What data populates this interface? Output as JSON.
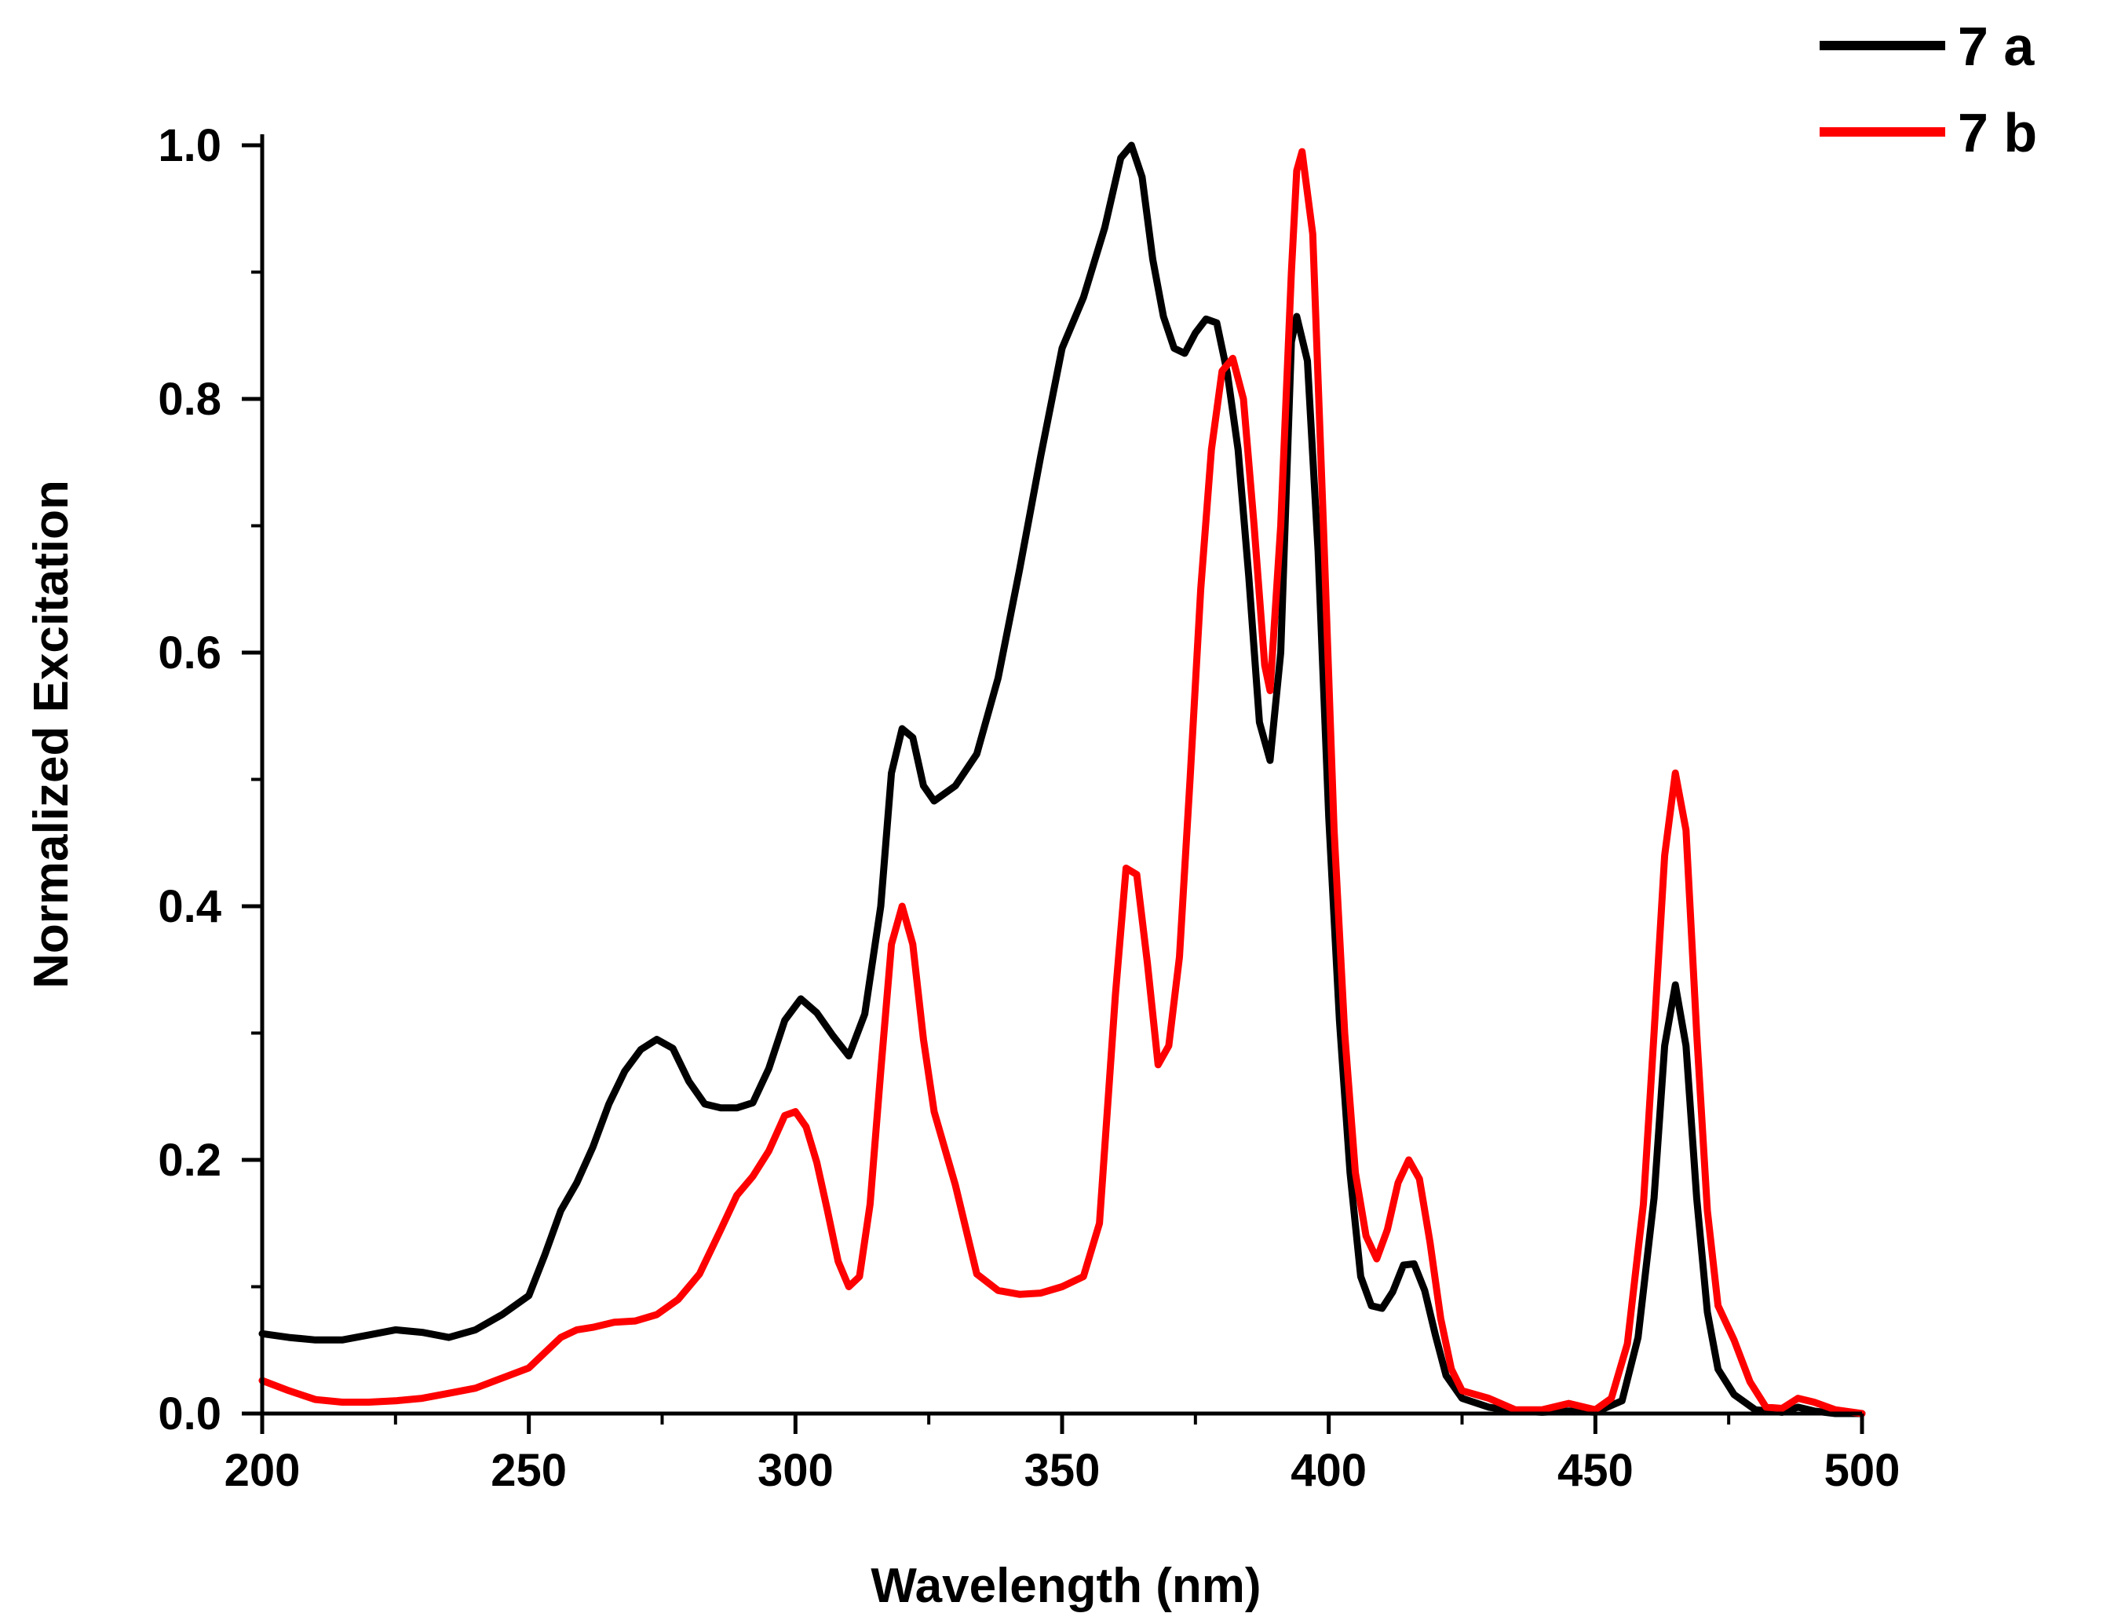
{
  "chart_data": {
    "type": "line",
    "title": "",
    "xlabel": "Wavelength (nm)",
    "ylabel": "Normalized Excitation",
    "xlim": [
      200,
      500
    ],
    "ylim": [
      0,
      1.0
    ],
    "x_ticks": [
      200,
      250,
      300,
      350,
      400,
      450,
      500
    ],
    "x_tick_labels": [
      "200",
      "250",
      "300",
      "350",
      "400",
      "450",
      "500"
    ],
    "y_ticks": [
      0.0,
      0.2,
      0.4,
      0.6,
      0.8,
      1.0
    ],
    "y_tick_labels": [
      "0.0",
      "0.2",
      "0.4",
      "0.6",
      "0.8",
      "1.0"
    ],
    "grid": false,
    "legend_position": "top-right",
    "series": [
      {
        "name": "7 a",
        "color": "#000000",
        "points": [
          [
            200,
            0.063
          ],
          [
            205,
            0.06
          ],
          [
            210,
            0.058
          ],
          [
            215,
            0.058
          ],
          [
            220,
            0.062
          ],
          [
            225,
            0.066
          ],
          [
            230,
            0.064
          ],
          [
            235,
            0.06
          ],
          [
            240,
            0.066
          ],
          [
            245,
            0.078
          ],
          [
            250,
            0.093
          ],
          [
            253,
            0.125
          ],
          [
            256,
            0.16
          ],
          [
            259,
            0.182
          ],
          [
            262,
            0.21
          ],
          [
            265,
            0.244
          ],
          [
            268,
            0.27
          ],
          [
            271,
            0.287
          ],
          [
            274,
            0.295
          ],
          [
            277,
            0.288
          ],
          [
            280,
            0.262
          ],
          [
            283,
            0.244
          ],
          [
            286,
            0.241
          ],
          [
            289,
            0.241
          ],
          [
            292,
            0.245
          ],
          [
            295,
            0.272
          ],
          [
            298,
            0.31
          ],
          [
            301,
            0.327
          ],
          [
            304,
            0.316
          ],
          [
            307,
            0.298
          ],
          [
            310,
            0.282
          ],
          [
            313,
            0.315
          ],
          [
            316,
            0.4
          ],
          [
            318,
            0.505
          ],
          [
            320,
            0.54
          ],
          [
            322,
            0.533
          ],
          [
            324,
            0.495
          ],
          [
            326,
            0.483
          ],
          [
            330,
            0.495
          ],
          [
            334,
            0.52
          ],
          [
            338,
            0.58
          ],
          [
            342,
            0.665
          ],
          [
            346,
            0.755
          ],
          [
            350,
            0.84
          ],
          [
            354,
            0.88
          ],
          [
            358,
            0.935
          ],
          [
            361,
            0.99
          ],
          [
            363,
            1.0
          ],
          [
            365,
            0.975
          ],
          [
            367,
            0.91
          ],
          [
            369,
            0.865
          ],
          [
            371,
            0.84
          ],
          [
            373,
            0.836
          ],
          [
            375,
            0.852
          ],
          [
            377,
            0.863
          ],
          [
            379,
            0.86
          ],
          [
            381,
            0.82
          ],
          [
            383,
            0.76
          ],
          [
            385,
            0.66
          ],
          [
            387,
            0.545
          ],
          [
            389,
            0.515
          ],
          [
            391,
            0.6
          ],
          [
            393,
            0.845
          ],
          [
            394,
            0.865
          ],
          [
            396,
            0.83
          ],
          [
            398,
            0.68
          ],
          [
            400,
            0.47
          ],
          [
            402,
            0.31
          ],
          [
            404,
            0.19
          ],
          [
            406,
            0.108
          ],
          [
            408,
            0.085
          ],
          [
            410,
            0.083
          ],
          [
            412,
            0.096
          ],
          [
            414,
            0.117
          ],
          [
            416,
            0.118
          ],
          [
            418,
            0.097
          ],
          [
            420,
            0.062
          ],
          [
            422,
            0.03
          ],
          [
            425,
            0.012
          ],
          [
            430,
            0.005
          ],
          [
            435,
            0.002
          ],
          [
            440,
            0.001
          ],
          [
            445,
            0.002
          ],
          [
            450,
            0.001
          ],
          [
            455,
            0.01
          ],
          [
            458,
            0.06
          ],
          [
            461,
            0.17
          ],
          [
            463,
            0.29
          ],
          [
            465,
            0.338
          ],
          [
            467,
            0.29
          ],
          [
            469,
            0.17
          ],
          [
            471,
            0.08
          ],
          [
            473,
            0.035
          ],
          [
            476,
            0.015
          ],
          [
            480,
            0.003
          ],
          [
            485,
            0.001
          ],
          [
            488,
            0.005
          ],
          [
            491,
            0.002
          ],
          [
            495,
            0.0
          ],
          [
            500,
            0.0
          ]
        ]
      },
      {
        "name": "7 b",
        "color": "#ff0000",
        "points": [
          [
            200,
            0.026
          ],
          [
            205,
            0.018
          ],
          [
            210,
            0.011
          ],
          [
            215,
            0.009
          ],
          [
            220,
            0.009
          ],
          [
            225,
            0.01
          ],
          [
            230,
            0.012
          ],
          [
            235,
            0.016
          ],
          [
            240,
            0.02
          ],
          [
            245,
            0.028
          ],
          [
            250,
            0.036
          ],
          [
            253,
            0.048
          ],
          [
            256,
            0.06
          ],
          [
            259,
            0.066
          ],
          [
            262,
            0.068
          ],
          [
            266,
            0.072
          ],
          [
            270,
            0.073
          ],
          [
            274,
            0.078
          ],
          [
            278,
            0.09
          ],
          [
            282,
            0.11
          ],
          [
            286,
            0.145
          ],
          [
            289,
            0.172
          ],
          [
            292,
            0.187
          ],
          [
            295,
            0.207
          ],
          [
            298,
            0.235
          ],
          [
            300,
            0.238
          ],
          [
            302,
            0.226
          ],
          [
            304,
            0.198
          ],
          [
            306,
            0.16
          ],
          [
            308,
            0.12
          ],
          [
            310,
            0.1
          ],
          [
            312,
            0.108
          ],
          [
            314,
            0.165
          ],
          [
            316,
            0.27
          ],
          [
            318,
            0.37
          ],
          [
            320,
            0.4
          ],
          [
            322,
            0.37
          ],
          [
            324,
            0.295
          ],
          [
            326,
            0.238
          ],
          [
            330,
            0.18
          ],
          [
            334,
            0.11
          ],
          [
            338,
            0.097
          ],
          [
            342,
            0.094
          ],
          [
            346,
            0.095
          ],
          [
            350,
            0.1
          ],
          [
            354,
            0.108
          ],
          [
            357,
            0.15
          ],
          [
            360,
            0.33
          ],
          [
            362,
            0.43
          ],
          [
            364,
            0.425
          ],
          [
            366,
            0.355
          ],
          [
            368,
            0.275
          ],
          [
            370,
            0.29
          ],
          [
            372,
            0.36
          ],
          [
            374,
            0.5
          ],
          [
            376,
            0.65
          ],
          [
            378,
            0.76
          ],
          [
            380,
            0.822
          ],
          [
            382,
            0.832
          ],
          [
            384,
            0.8
          ],
          [
            386,
            0.7
          ],
          [
            388,
            0.59
          ],
          [
            389,
            0.57
          ],
          [
            391,
            0.7
          ],
          [
            393,
            0.9
          ],
          [
            394,
            0.98
          ],
          [
            395,
            0.995
          ],
          [
            397,
            0.93
          ],
          [
            399,
            0.7
          ],
          [
            401,
            0.46
          ],
          [
            403,
            0.3
          ],
          [
            405,
            0.19
          ],
          [
            407,
            0.14
          ],
          [
            409,
            0.122
          ],
          [
            411,
            0.145
          ],
          [
            413,
            0.182
          ],
          [
            415,
            0.2
          ],
          [
            417,
            0.185
          ],
          [
            419,
            0.135
          ],
          [
            421,
            0.075
          ],
          [
            423,
            0.035
          ],
          [
            425,
            0.018
          ],
          [
            430,
            0.012
          ],
          [
            435,
            0.003
          ],
          [
            440,
            0.003
          ],
          [
            445,
            0.008
          ],
          [
            450,
            0.003
          ],
          [
            453,
            0.012
          ],
          [
            456,
            0.055
          ],
          [
            459,
            0.165
          ],
          [
            461,
            0.3
          ],
          [
            463,
            0.44
          ],
          [
            465,
            0.505
          ],
          [
            467,
            0.46
          ],
          [
            469,
            0.3
          ],
          [
            471,
            0.16
          ],
          [
            473,
            0.085
          ],
          [
            476,
            0.058
          ],
          [
            479,
            0.025
          ],
          [
            482,
            0.005
          ],
          [
            485,
            0.004
          ],
          [
            488,
            0.012
          ],
          [
            491,
            0.009
          ],
          [
            495,
            0.003
          ],
          [
            500,
            0.0
          ]
        ]
      }
    ]
  }
}
